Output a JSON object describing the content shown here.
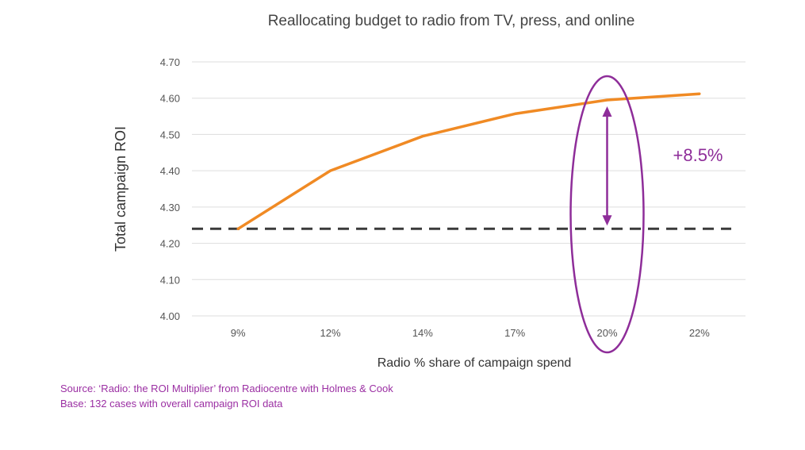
{
  "chart_data": {
    "type": "line",
    "title": "Reallocating budget to radio from TV, press, and online",
    "xlabel": "Radio % share of campaign spend",
    "ylabel": "Total campaign ROI",
    "categories": [
      "9%",
      "12%",
      "14%",
      "17%",
      "20%",
      "22%"
    ],
    "series": [
      {
        "values": [
          4.24,
          4.4,
          4.495,
          4.557,
          4.595,
          4.612
        ]
      }
    ],
    "y_ticks": [
      "4.00",
      "4.10",
      "4.20",
      "4.30",
      "4.40",
      "4.50",
      "4.60",
      "4.70"
    ],
    "ylim": [
      4.0,
      4.7
    ],
    "grid": true,
    "baseline": {
      "value": 4.24,
      "style": "dashed"
    },
    "annotation": {
      "text": "+8.5%",
      "category": "20%",
      "from": 4.24,
      "to": 4.595
    },
    "colors": {
      "line": "#f08a24",
      "baseline": "#3a3a3a",
      "annotation": "#8e2d99",
      "grid": "#dddddd"
    }
  },
  "source": {
    "line1": "Source: ‘Radio: the ROI Multiplier’ from Radiocentre with Holmes & Cook",
    "line2": "Base: 132 cases with overall campaign ROI data"
  }
}
